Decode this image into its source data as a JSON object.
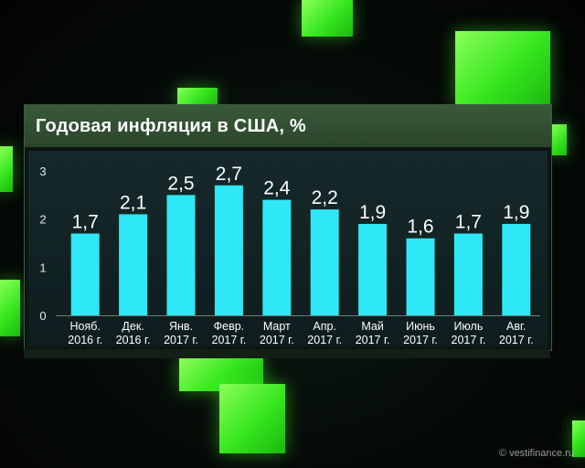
{
  "title": "Годовая инфляция в США, %",
  "watermark": "© vestifinance.ru",
  "colors": {
    "bar": "#2ee8f5",
    "header": "#2f4a30",
    "accent": "#3cff20"
  },
  "chart_data": {
    "type": "bar",
    "title": "Годовая инфляция в США, %",
    "categories": [
      [
        "Нояб.",
        "2016 г."
      ],
      [
        "Дек.",
        "2016 г."
      ],
      [
        "Янв.",
        "2017 г."
      ],
      [
        "Февр.",
        "2017 г."
      ],
      [
        "Март",
        "2017 г."
      ],
      [
        "Апр.",
        "2017 г."
      ],
      [
        "Май",
        "2017 г."
      ],
      [
        "Июнь",
        "2017 г."
      ],
      [
        "Июль",
        "2017 г."
      ],
      [
        "Авг.",
        "2017 г."
      ]
    ],
    "values": [
      1.7,
      2.1,
      2.5,
      2.7,
      2.4,
      2.2,
      1.9,
      1.6,
      1.7,
      1.9
    ],
    "value_labels": [
      "1,7",
      "2,1",
      "2,5",
      "2,7",
      "2,4",
      "2,2",
      "1,9",
      "1,6",
      "1,7",
      "1,9"
    ],
    "yticks": [
      "0",
      "1",
      "2",
      "3"
    ],
    "ylim": [
      0,
      3
    ],
    "grid": false
  }
}
